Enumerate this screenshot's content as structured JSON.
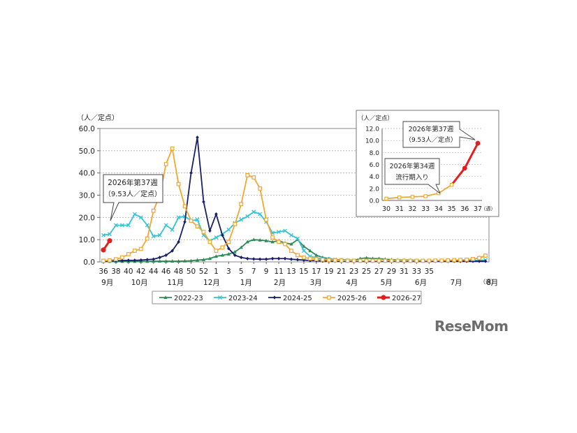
{
  "logo": "ReseMom",
  "chart_data": [
    {
      "type": "line",
      "ylabel": "（人／定点）",
      "xlabel": "（週）",
      "ylim": [
        0,
        60
      ],
      "yticks": [
        "0.0",
        "10.0",
        "20.0",
        "30.0",
        "40.0",
        "50.0",
        "60.0"
      ],
      "week_ticks": [
        "36",
        "38",
        "40",
        "42",
        "44",
        "46",
        "48",
        "50",
        "52",
        "1",
        "3",
        "5",
        "7",
        "9",
        "11",
        "13",
        "15",
        "17",
        "19",
        "21",
        "23",
        "25",
        "27",
        "29",
        "31",
        "33",
        "35"
      ],
      "month_labels": [
        "9月",
        "10月",
        "11月",
        "12月",
        "1月",
        "2月",
        "3月",
        "4月",
        "5月",
        "6月",
        "7月",
        "8月"
      ],
      "grid": "horizontal",
      "legend_position": "bottom",
      "series": [
        {
          "name": "2022-23",
          "color": "#2e8b57",
          "marker": "triangle",
          "values": [
            0.2,
            0.2,
            0.2,
            0.2,
            0.2,
            0.2,
            0.2,
            0.2,
            0.3,
            0.3,
            0.3,
            0.3,
            0.3,
            0.4,
            0.5,
            0.8,
            1.0,
            1.5,
            2.5,
            3.0,
            3.5,
            4.5,
            6.5,
            9.0,
            10.0,
            9.8,
            9.5,
            9.0,
            9.5,
            8.5,
            8.0,
            10.0,
            7.0,
            5.0,
            3.0,
            2.0,
            1.5,
            1.0,
            1.0,
            0.8,
            0.7,
            1.5,
            1.8,
            1.5,
            1.5,
            1.2,
            1.0,
            0.8,
            0.8,
            0.8,
            0.7,
            0.6,
            0.5,
            0.6,
            0.6,
            0.7,
            0.7,
            0.8,
            0.8,
            1.0,
            2.0,
            2.5
          ]
        },
        {
          "name": "2023-24",
          "color": "#33c3d6",
          "marker": "x",
          "values": [
            12.0,
            12.5,
            16.5,
            16.5,
            16.5,
            21.5,
            20.0,
            16.5,
            11.5,
            12.0,
            16.5,
            14.5,
            20.0,
            20.5,
            18.5,
            19.0,
            12.0,
            9.5,
            11.0,
            12.5,
            14.5,
            17.5,
            19.0,
            20.5,
            22.5,
            21.5,
            18.0,
            13.0,
            13.5,
            14.0,
            12.0,
            10.5,
            5.0,
            2.5,
            1.8,
            1.5,
            1.2,
            1.0,
            0.8,
            0.7,
            0.6,
            0.5,
            0.5,
            0.5,
            0.5,
            0.5,
            0.5,
            0.5,
            0.5,
            0.5,
            0.5,
            0.5,
            0.5,
            0.5,
            0.5,
            0.5,
            0.5,
            0.6,
            0.6,
            0.6,
            0.7,
            0.8
          ]
        },
        {
          "name": "2024-25",
          "color": "#1a1f6b",
          "marker": "diamond",
          "values": [
            0.3,
            0.4,
            0.5,
            0.6,
            0.7,
            0.7,
            0.8,
            1.0,
            1.2,
            2.0,
            3.0,
            5.0,
            9.0,
            18.0,
            40.0,
            56.0,
            27.0,
            14.0,
            21.5,
            12.0,
            6.0,
            3.0,
            2.0,
            1.5,
            1.3,
            1.2,
            1.2,
            1.5,
            1.5,
            1.5,
            1.2,
            1.0,
            0.8,
            0.6,
            0.5,
            0.4,
            0.4,
            0.3,
            0.3,
            0.3,
            0.3,
            0.3,
            0.3,
            0.3,
            0.3,
            0.3,
            0.3,
            0.3,
            0.3,
            0.3,
            0.3,
            0.3,
            0.3,
            0.3,
            0.3,
            0.3,
            0.3,
            0.3,
            0.3,
            0.3,
            0.3,
            0.3
          ]
        },
        {
          "name": "2025-26",
          "color": "#f0a830",
          "marker": "square",
          "values": [
            0.5,
            0.7,
            1.2,
            2.0,
            3.5,
            5.0,
            5.8,
            10.5,
            23.0,
            30.0,
            44.0,
            51.0,
            35.0,
            25.0,
            18.5,
            16.0,
            13.5,
            9.0,
            5.0,
            6.5,
            9.0,
            17.0,
            26.0,
            39.0,
            38.0,
            33.0,
            19.0,
            11.0,
            9.0,
            8.0,
            5.0,
            3.0,
            2.0,
            1.5,
            1.2,
            1.0,
            0.8,
            0.7,
            0.6,
            0.5,
            0.5,
            0.5,
            0.5,
            0.5,
            0.5,
            0.5,
            0.5,
            0.5,
            0.5,
            0.5,
            0.5,
            0.5,
            0.5,
            0.6,
            0.6,
            0.7,
            0.8,
            0.9,
            1.0,
            1.3,
            1.7,
            2.8
          ]
        },
        {
          "name": "2026-27",
          "color": "#e02020",
          "marker": "circle",
          "values": [
            5.38,
            9.53
          ]
        }
      ],
      "annotations": [
        {
          "title": "2026年第37週",
          "sub": "（9.53人／定点）"
        }
      ]
    },
    {
      "type": "line",
      "ylabel": "（人／定点）",
      "xlabel": "（週）",
      "ylim": [
        0,
        12
      ],
      "yticks": [
        "0.0",
        "2.0",
        "4.0",
        "6.0",
        "8.0",
        "10.0",
        "12.0"
      ],
      "week_ticks": [
        "30",
        "31",
        "32",
        "33",
        "34",
        "35",
        "36",
        "37"
      ],
      "series": [
        {
          "name": "2026",
          "color": "#f0a830",
          "values": [
            0.3,
            0.5,
            0.6,
            0.7,
            1.2,
            2.6,
            5.38,
            9.53
          ]
        }
      ],
      "annotations": [
        {
          "title": "2026年第37週",
          "sub": "（9.53人／定点）"
        },
        {
          "title": "2026年第34週",
          "sub": "流行期入り"
        }
      ]
    }
  ]
}
